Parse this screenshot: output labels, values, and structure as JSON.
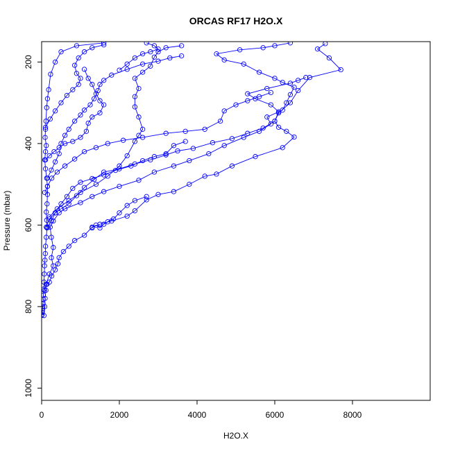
{
  "chart_data": {
    "type": "line",
    "title": "ORCAS RF17 H2O.X",
    "xlabel": "H2O.X",
    "ylabel": "Pressure (mbar)",
    "xlim": [
      0,
      10000
    ],
    "ylim": [
      1030,
      150
    ],
    "y_reversed": true,
    "grid": false,
    "legend": "none",
    "x_ticks": [
      0,
      2000,
      4000,
      6000,
      8000
    ],
    "y_ticks": [
      200,
      400,
      600,
      800,
      1000
    ],
    "marker": "open-circle",
    "color": "#0000ff",
    "series": [
      {
        "values": [
          [
            0,
            822
          ],
          [
            10,
            820
          ],
          [
            15,
            815
          ],
          [
            20,
            810
          ],
          [
            25,
            805
          ],
          [
            30,
            800
          ],
          [
            35,
            793
          ],
          [
            40,
            782
          ],
          [
            45,
            772
          ],
          [
            55,
            757
          ],
          [
            60,
            740
          ],
          [
            70,
            720
          ],
          [
            75,
            700
          ],
          [
            85,
            686
          ],
          [
            95,
            670
          ],
          [
            100,
            652
          ],
          [
            120,
            630
          ],
          [
            140,
            607
          ],
          [
            130,
            588
          ],
          [
            120,
            568
          ],
          [
            140,
            548
          ],
          [
            150,
            525
          ],
          [
            150,
            505
          ],
          [
            130,
            485
          ],
          [
            100,
            462
          ],
          [
            80,
            440
          ],
          [
            100,
            420
          ],
          [
            120,
            405
          ],
          [
            90,
            385
          ],
          [
            100,
            365
          ],
          [
            110,
            345
          ],
          [
            130,
            312
          ],
          [
            150,
            290
          ],
          [
            180,
            268
          ],
          [
            230,
            230
          ],
          [
            350,
            200
          ],
          [
            500,
            175
          ],
          [
            900,
            160
          ],
          [
            1600,
            153
          ]
        ]
      },
      {
        "values": [
          [
            60,
            822
          ],
          [
            80,
            800
          ],
          [
            90,
            780
          ],
          [
            110,
            760
          ],
          [
            140,
            745
          ],
          [
            200,
            740
          ],
          [
            260,
            725
          ],
          [
            350,
            710
          ],
          [
            420,
            695
          ],
          [
            450,
            680
          ],
          [
            560,
            665
          ],
          [
            700,
            652
          ],
          [
            850,
            638
          ],
          [
            1100,
            625
          ],
          [
            1300,
            605
          ],
          [
            1500,
            598
          ],
          [
            1800,
            590
          ],
          [
            2200,
            578
          ],
          [
            2400,
            565
          ],
          [
            2700,
            538
          ],
          [
            3000,
            525
          ],
          [
            3400,
            518
          ],
          [
            3800,
            500
          ],
          [
            4200,
            480
          ],
          [
            4500,
            475
          ],
          [
            4900,
            455
          ],
          [
            5500,
            432
          ],
          [
            6200,
            410
          ],
          [
            6500,
            384
          ],
          [
            6300,
            370
          ],
          [
            6100,
            360
          ],
          [
            6000,
            345
          ],
          [
            6100,
            325
          ],
          [
            6400,
            300
          ],
          [
            6600,
            270
          ],
          [
            6900,
            238
          ],
          [
            7700,
            219
          ],
          [
            7400,
            190
          ],
          [
            7100,
            168
          ],
          [
            7300,
            155
          ]
        ]
      },
      {
        "values": [
          [
            70,
            760
          ],
          [
            120,
            745
          ],
          [
            200,
            720
          ],
          [
            300,
            700
          ],
          [
            250,
            680
          ],
          [
            300,
            655
          ],
          [
            250,
            630
          ],
          [
            220,
            605
          ],
          [
            300,
            590
          ],
          [
            450,
            570
          ],
          [
            600,
            560
          ],
          [
            1000,
            545
          ],
          [
            1300,
            530
          ],
          [
            1600,
            518
          ],
          [
            2000,
            505
          ],
          [
            2500,
            490
          ],
          [
            2900,
            470
          ],
          [
            3400,
            455
          ],
          [
            3800,
            442
          ],
          [
            4300,
            425
          ],
          [
            4700,
            405
          ],
          [
            5200,
            385
          ],
          [
            5600,
            370
          ],
          [
            5900,
            352
          ],
          [
            5800,
            335
          ],
          [
            6200,
            318
          ],
          [
            6300,
            300
          ],
          [
            6400,
            280
          ],
          [
            6500,
            262
          ],
          [
            6200,
            250
          ],
          [
            6000,
            240
          ],
          [
            5600,
            225
          ],
          [
            5200,
            205
          ],
          [
            4700,
            195
          ],
          [
            4500,
            180
          ],
          [
            5100,
            170
          ],
          [
            5700,
            165
          ],
          [
            6000,
            160
          ],
          [
            6400,
            153
          ]
        ]
      },
      {
        "values": [
          [
            120,
            605
          ],
          [
            200,
            585
          ],
          [
            350,
            570
          ],
          [
            500,
            560
          ],
          [
            700,
            548
          ],
          [
            900,
            528
          ],
          [
            1100,
            508
          ],
          [
            1350,
            488
          ],
          [
            1600,
            470
          ],
          [
            2000,
            462
          ],
          [
            2400,
            450
          ],
          [
            2800,
            440
          ],
          [
            3200,
            428
          ],
          [
            3500,
            418
          ],
          [
            3900,
            412
          ],
          [
            4400,
            398
          ],
          [
            4900,
            388
          ],
          [
            5300,
            375
          ],
          [
            5700,
            362
          ],
          [
            6000,
            345
          ],
          [
            6100,
            322
          ],
          [
            5900,
            305
          ],
          [
            5500,
            290
          ],
          [
            5300,
            278
          ],
          [
            5800,
            265
          ],
          [
            6400,
            252
          ],
          [
            6600,
            245
          ],
          [
            6800,
            238
          ]
        ]
      },
      {
        "values": [
          [
            80,
            520
          ],
          [
            150,
            505
          ],
          [
            260,
            485
          ],
          [
            400,
            470
          ],
          [
            600,
            455
          ],
          [
            850,
            438
          ],
          [
            1100,
            420
          ],
          [
            1400,
            410
          ],
          [
            1700,
            400
          ],
          [
            2100,
            392
          ],
          [
            2600,
            385
          ],
          [
            3200,
            375
          ],
          [
            3700,
            370
          ],
          [
            4200,
            365
          ],
          [
            4600,
            345
          ],
          [
            4700,
            320
          ],
          [
            5000,
            305
          ],
          [
            5300,
            295
          ],
          [
            5600,
            285
          ],
          [
            5900,
            275
          ]
        ]
      },
      {
        "values": [
          [
            150,
            605
          ],
          [
            250,
            590
          ],
          [
            350,
            570
          ],
          [
            500,
            548
          ],
          [
            650,
            530
          ],
          [
            800,
            510
          ],
          [
            1000,
            495
          ],
          [
            1300,
            486
          ],
          [
            1600,
            477
          ],
          [
            1900,
            466
          ],
          [
            2300,
            455
          ],
          [
            2600,
            442
          ],
          [
            2900,
            432
          ],
          [
            3200,
            425
          ],
          [
            3400,
            405
          ],
          [
            3700,
            395
          ]
        ]
      },
      {
        "values": [
          [
            100,
            440
          ],
          [
            200,
            430
          ],
          [
            320,
            420
          ],
          [
            450,
            410
          ],
          [
            600,
            400
          ],
          [
            800,
            395
          ],
          [
            1000,
            385
          ],
          [
            1150,
            370
          ],
          [
            1200,
            350
          ],
          [
            1300,
            335
          ],
          [
            1500,
            325
          ],
          [
            1600,
            305
          ],
          [
            1500,
            295
          ],
          [
            1400,
            278
          ],
          [
            1300,
            255
          ],
          [
            1200,
            240
          ],
          [
            1100,
            218
          ]
        ]
      },
      {
        "values": [
          [
            200,
            580
          ],
          [
            400,
            560
          ],
          [
            700,
            540
          ],
          [
            1000,
            520
          ],
          [
            1400,
            500
          ],
          [
            1700,
            480
          ],
          [
            2000,
            455
          ],
          [
            2200,
            430
          ],
          [
            2400,
            395
          ],
          [
            2500,
            380
          ],
          [
            2600,
            365
          ],
          [
            2500,
            335
          ],
          [
            2400,
            310
          ],
          [
            2400,
            285
          ],
          [
            2500,
            265
          ],
          [
            2400,
            240
          ],
          [
            2600,
            225
          ],
          [
            2800,
            210
          ],
          [
            2900,
            188
          ],
          [
            3000,
            175
          ],
          [
            3200,
            165
          ],
          [
            3600,
            160
          ]
        ]
      },
      {
        "values": [
          [
            1300,
            607
          ],
          [
            1400,
            600
          ],
          [
            1500,
            607
          ],
          [
            1600,
            598
          ],
          [
            1700,
            592
          ],
          [
            1850,
            585
          ],
          [
            2000,
            570
          ],
          [
            2200,
            552
          ],
          [
            2400,
            540
          ],
          [
            2700,
            530
          ]
        ]
      },
      {
        "values": [
          [
            150,
            485
          ],
          [
            250,
            465
          ],
          [
            350,
            445
          ],
          [
            450,
            425
          ],
          [
            500,
            400
          ],
          [
            600,
            380
          ],
          [
            700,
            365
          ],
          [
            850,
            345
          ],
          [
            1000,
            330
          ],
          [
            1100,
            318
          ],
          [
            1250,
            305
          ],
          [
            1350,
            290
          ],
          [
            1450,
            270
          ],
          [
            1500,
            255
          ],
          [
            1600,
            245
          ],
          [
            1800,
            232
          ],
          [
            2200,
            218
          ],
          [
            2600,
            205
          ],
          [
            3000,
            198
          ],
          [
            3300,
            190
          ],
          [
            3600,
            185
          ]
        ]
      },
      {
        "values": [
          [
            100,
            360
          ],
          [
            220,
            340
          ],
          [
            350,
            320
          ],
          [
            500,
            300
          ],
          [
            650,
            282
          ],
          [
            800,
            268
          ],
          [
            950,
            255
          ],
          [
            1000,
            240
          ],
          [
            900,
            228
          ],
          [
            850,
            208
          ],
          [
            950,
            190
          ],
          [
            1100,
            175
          ],
          [
            1300,
            165
          ],
          [
            1600,
            158
          ]
        ]
      },
      {
        "values": [
          [
            2000,
            220
          ],
          [
            2200,
            205
          ],
          [
            2400,
            190
          ],
          [
            2600,
            180
          ],
          [
            2800,
            175
          ],
          [
            3000,
            168
          ],
          [
            2900,
            160
          ],
          [
            2700,
            153
          ]
        ]
      }
    ]
  }
}
